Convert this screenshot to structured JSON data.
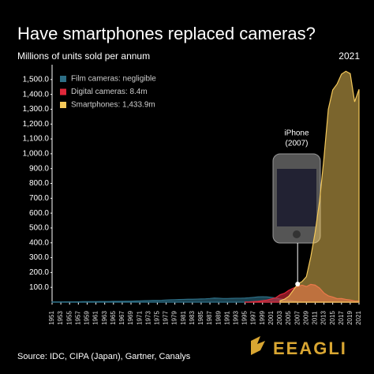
{
  "chart_data": {
    "type": "area",
    "title": "Have smartphones replaced cameras?",
    "subtitle": "Millions of units sold per annum",
    "year_label": "2021",
    "annotation": {
      "line1": "iPhone",
      "line2": "(2007)"
    },
    "source": "Source: IDC, CIPA (Japan), Gartner, Canalys",
    "logo": "EEAGLI",
    "x": [
      1951,
      1952,
      1953,
      1954,
      1955,
      1956,
      1957,
      1958,
      1959,
      1960,
      1961,
      1962,
      1963,
      1964,
      1965,
      1966,
      1967,
      1968,
      1969,
      1970,
      1971,
      1972,
      1973,
      1974,
      1975,
      1976,
      1977,
      1978,
      1979,
      1980,
      1981,
      1982,
      1983,
      1984,
      1985,
      1986,
      1987,
      1988,
      1989,
      1990,
      1991,
      1992,
      1993,
      1994,
      1995,
      1996,
      1997,
      1998,
      1999,
      2000,
      2001,
      2002,
      2003,
      2004,
      2005,
      2006,
      2007,
      2008,
      2009,
      2010,
      2011,
      2012,
      2013,
      2014,
      2015,
      2016,
      2017,
      2018,
      2019,
      2020,
      2021
    ],
    "series": [
      {
        "name": "Film cameras: negligible",
        "color": "#2d6e85",
        "values": [
          2,
          2,
          2,
          3,
          3,
          3,
          3,
          4,
          4,
          4,
          4,
          5,
          5,
          5,
          6,
          6,
          6,
          7,
          7,
          8,
          9,
          10,
          11,
          12,
          12,
          13,
          15,
          16,
          17,
          18,
          19,
          20,
          20,
          21,
          22,
          23,
          25,
          28,
          27,
          25,
          25,
          26,
          27,
          27,
          28,
          30,
          33,
          36,
          37,
          36,
          33,
          28,
          22,
          18,
          12,
          8,
          5,
          3,
          2,
          1,
          1,
          1,
          0.8,
          0.6,
          0.5,
          0.4,
          0.3,
          0.3,
          0.2,
          0.2,
          0.1
        ]
      },
      {
        "name": "Digital cameras: 8.4m",
        "color": "#e0283a",
        "values": [
          null,
          null,
          null,
          null,
          null,
          null,
          null,
          null,
          null,
          null,
          null,
          null,
          null,
          null,
          null,
          null,
          null,
          null,
          null,
          null,
          null,
          null,
          null,
          null,
          null,
          null,
          null,
          null,
          null,
          null,
          null,
          null,
          null,
          null,
          null,
          null,
          null,
          null,
          null,
          null,
          null,
          null,
          null,
          null,
          1,
          2,
          4,
          6,
          10,
          14,
          22,
          30,
          50,
          60,
          80,
          95,
          105,
          115,
          105,
          120,
          115,
          95,
          62,
          43,
          35,
          24,
          25,
          19,
          15,
          9,
          8.4
        ]
      },
      {
        "name": "Smartphones: 1,433.9m",
        "color": "#f5c95a",
        "values": [
          null,
          null,
          null,
          null,
          null,
          null,
          null,
          null,
          null,
          null,
          null,
          null,
          null,
          null,
          null,
          null,
          null,
          null,
          null,
          null,
          null,
          null,
          null,
          null,
          null,
          null,
          null,
          null,
          null,
          null,
          null,
          null,
          null,
          null,
          null,
          null,
          null,
          null,
          null,
          null,
          null,
          null,
          null,
          null,
          null,
          null,
          null,
          null,
          null,
          null,
          null,
          null,
          10,
          20,
          40,
          80,
          122,
          139,
          172,
          305,
          472,
          680,
          970,
          1300,
          1430,
          1470,
          1536,
          1556,
          1540,
          1350,
          1433.9
        ]
      }
    ],
    "xlim": [
      1951,
      2021
    ],
    "xticks": [
      1951,
      1953,
      1955,
      1957,
      1959,
      1961,
      1963,
      1965,
      1967,
      1969,
      1971,
      1973,
      1975,
      1977,
      1979,
      1981,
      1983,
      1985,
      1987,
      1989,
      1991,
      1993,
      1995,
      1997,
      1999,
      2001,
      2003,
      2005,
      2007,
      2009,
      2011,
      2013,
      2015,
      2017,
      2019,
      2021
    ],
    "ylim": [
      0,
      1600
    ],
    "yticks": [
      {
        "value": 100,
        "label": "100.0"
      },
      {
        "value": 200,
        "label": "200.0"
      },
      {
        "value": 300,
        "label": "300.0"
      },
      {
        "value": 400,
        "label": "400.0"
      },
      {
        "value": 500,
        "label": "500.0"
      },
      {
        "value": 600,
        "label": "600.0"
      },
      {
        "value": 700,
        "label": "700.0"
      },
      {
        "value": 800,
        "label": "800.0"
      },
      {
        "value": 900,
        "label": "900.0"
      },
      {
        "value": 1000,
        "label": "1,000.0"
      },
      {
        "value": 1100,
        "label": "1,100.0"
      },
      {
        "value": 1200,
        "label": "1,200.0"
      },
      {
        "value": 1300,
        "label": "1,300.0"
      },
      {
        "value": 1400,
        "label": "1,400.0"
      },
      {
        "value": 1500,
        "label": "1,500.0"
      }
    ]
  }
}
